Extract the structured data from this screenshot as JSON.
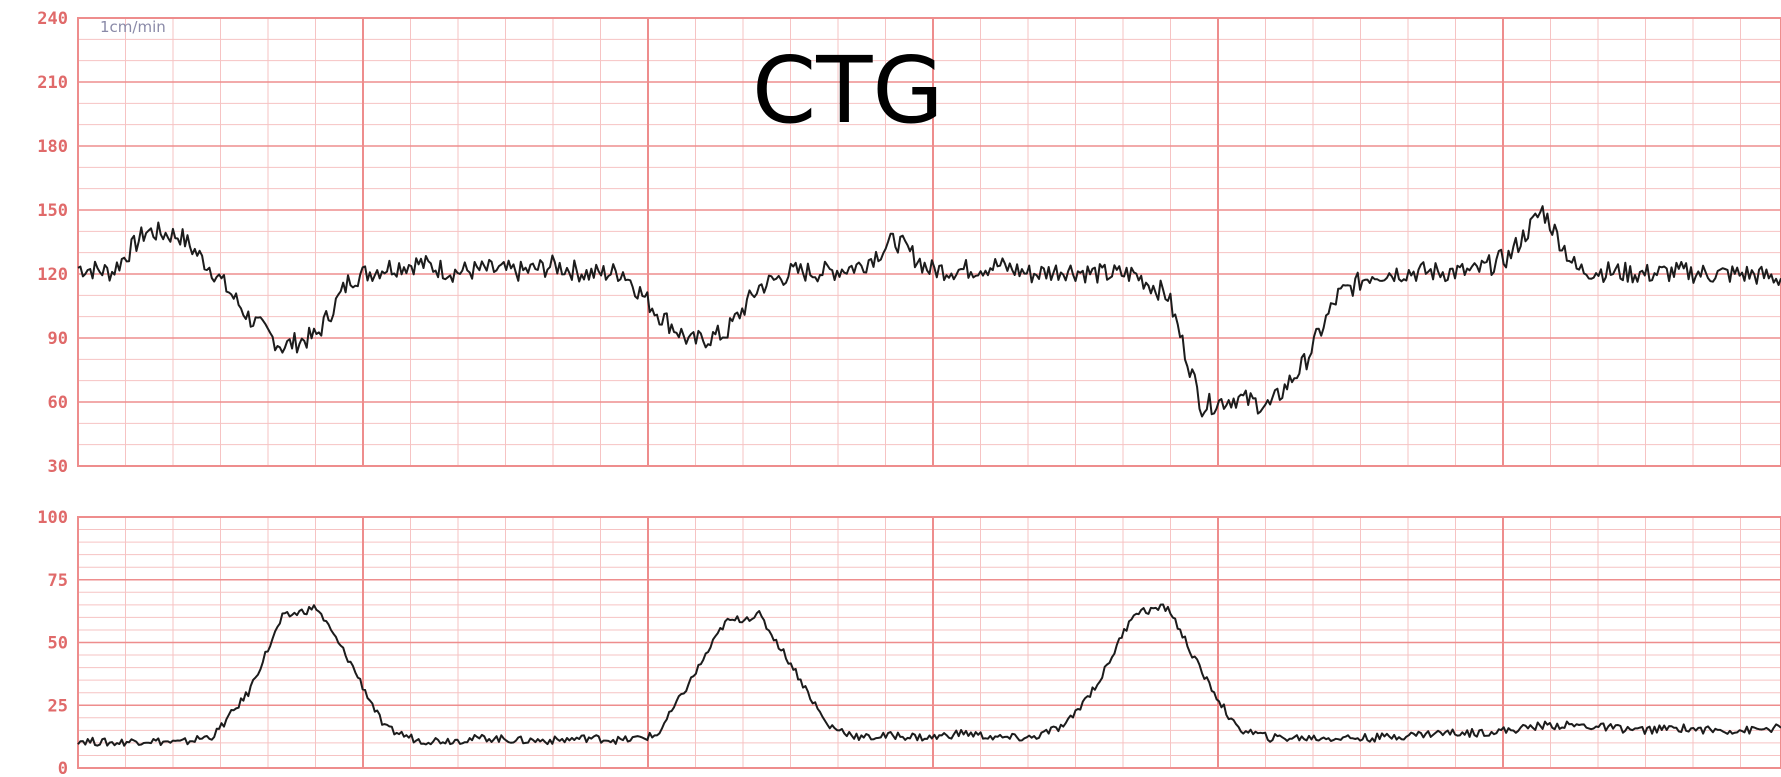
{
  "chart_data": [
    {
      "type": "line",
      "title": "CTG",
      "annotation": "1cm/min",
      "ylim": [
        30,
        240
      ],
      "yticks": [
        "240",
        "210",
        "180",
        "150",
        "120",
        "90",
        "60",
        "30"
      ],
      "grid": true,
      "series": [
        {
          "x": [
            0,
            2,
            4,
            6,
            8,
            10,
            12,
            14,
            16,
            18,
            20,
            22,
            24,
            26,
            28,
            30,
            32,
            34,
            36,
            38,
            40,
            42,
            44,
            46,
            48,
            50,
            52,
            54,
            56,
            58,
            60,
            62,
            64,
            66,
            68,
            70,
            72,
            74,
            76,
            78,
            80,
            82,
            84,
            86,
            88,
            90,
            92,
            94,
            96,
            98,
            100
          ],
          "values": [
            123,
            121,
            140,
            138,
            121,
            100,
            86,
            91,
            118,
            123,
            125,
            121,
            122,
            121,
            124,
            120,
            121,
            102,
            88,
            92,
            114,
            121,
            121,
            124,
            136,
            122,
            122,
            124,
            120,
            122,
            120,
            120,
            110,
            58,
            62,
            58,
            78,
            110,
            120,
            121,
            121,
            121,
            128,
            150,
            122,
            121,
            120,
            121,
            120,
            120,
            118
          ]
        }
      ]
    },
    {
      "type": "line",
      "ylim": [
        0,
        100
      ],
      "yticks": [
        "100",
        "75",
        "50",
        "25",
        "0"
      ],
      "grid": true,
      "series": [
        {
          "x": [
            0,
            2,
            4,
            6,
            8,
            10,
            12,
            14,
            16,
            18,
            20,
            22,
            24,
            26,
            28,
            30,
            32,
            34,
            36,
            38,
            40,
            42,
            44,
            46,
            48,
            50,
            52,
            54,
            56,
            58,
            60,
            62,
            64,
            66,
            68,
            70,
            72,
            74,
            76,
            78,
            80,
            82,
            84,
            86,
            88,
            90,
            92,
            94,
            96,
            98,
            100
          ],
          "values": [
            11,
            10,
            11,
            10,
            13,
            30,
            60,
            64,
            42,
            16,
            11,
            11,
            12,
            11,
            11,
            12,
            11,
            13,
            35,
            58,
            61,
            40,
            17,
            12,
            13,
            12,
            14,
            12,
            12,
            17,
            35,
            62,
            64,
            38,
            16,
            12,
            12,
            12,
            12,
            13,
            14,
            14,
            15,
            17,
            17,
            16,
            15,
            16,
            15,
            15,
            16
          ]
        }
      ]
    }
  ]
}
